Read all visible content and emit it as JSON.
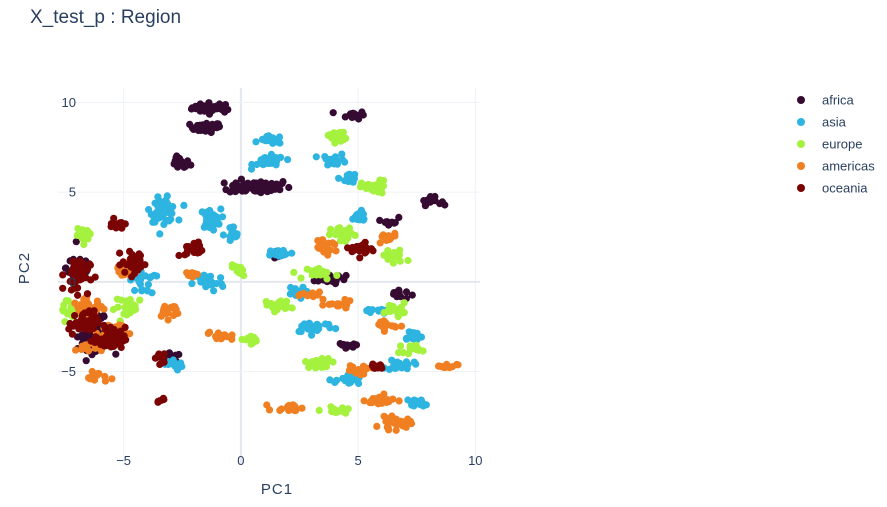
{
  "chart_data": {
    "type": "scatter",
    "title": "X_test_p : Region",
    "xlabel": "PC1",
    "ylabel": "PC2",
    "xlim": [
      -7.8,
      10.2
    ],
    "ylim": [
      -10.2,
      10.8
    ],
    "xticks": [
      -5,
      0,
      5,
      10
    ],
    "yticks": [
      -5,
      0,
      5,
      10
    ],
    "xtick_labels": [
      "−5",
      "0",
      "5",
      "10"
    ],
    "ytick_labels": [
      "−5",
      "0",
      "5",
      "10"
    ],
    "grid": true,
    "legend_position": "top-right",
    "series": [
      {
        "name": "africa",
        "color": "#360b32",
        "clusters": [
          {
            "x": -1.2,
            "y": 9.7,
            "sx": 0.8,
            "sy": 0.25,
            "n": 40
          },
          {
            "x": -1.5,
            "y": 8.6,
            "sx": 0.6,
            "sy": 0.25,
            "n": 30
          },
          {
            "x": -2.6,
            "y": 6.6,
            "sx": 0.4,
            "sy": 0.3,
            "n": 25
          },
          {
            "x": 0.8,
            "y": 5.3,
            "sx": 1.2,
            "sy": 0.35,
            "n": 70
          },
          {
            "x": 4.8,
            "y": 9.3,
            "sx": 0.45,
            "sy": 0.2,
            "n": 18
          },
          {
            "x": 8.1,
            "y": 4.5,
            "sx": 0.4,
            "sy": 0.2,
            "n": 18
          },
          {
            "x": 3.8,
            "y": 0.2,
            "sx": 0.6,
            "sy": 0.35,
            "n": 20
          },
          {
            "x": 6.7,
            "y": -0.7,
            "sx": 0.4,
            "sy": 0.25,
            "n": 14
          },
          {
            "x": 6.4,
            "y": 3.4,
            "sx": 0.3,
            "sy": 0.2,
            "n": 10
          },
          {
            "x": -6.2,
            "y": -2.9,
            "sx": 0.7,
            "sy": 0.8,
            "n": 90
          },
          {
            "x": -6.9,
            "y": 0.8,
            "sx": 0.5,
            "sy": 0.8,
            "n": 35
          },
          {
            "x": -3.0,
            "y": -4.3,
            "sx": 0.4,
            "sy": 0.3,
            "n": 16
          },
          {
            "x": 4.5,
            "y": -3.6,
            "sx": 0.5,
            "sy": 0.2,
            "n": 12
          },
          {
            "x": 1.6,
            "y": 1.5,
            "sx": 0.3,
            "sy": 0.2,
            "n": 8
          }
        ]
      },
      {
        "name": "asia",
        "color": "#2db4e0",
        "clusters": [
          {
            "x": 1.3,
            "y": 7.9,
            "sx": 0.45,
            "sy": 0.2,
            "n": 22
          },
          {
            "x": 1.2,
            "y": 6.7,
            "sx": 0.6,
            "sy": 0.3,
            "n": 30
          },
          {
            "x": 4.0,
            "y": 6.8,
            "sx": 0.5,
            "sy": 0.3,
            "n": 18
          },
          {
            "x": 4.6,
            "y": 5.8,
            "sx": 0.35,
            "sy": 0.25,
            "n": 12
          },
          {
            "x": -3.3,
            "y": 4.0,
            "sx": 0.5,
            "sy": 0.6,
            "n": 55
          },
          {
            "x": -1.3,
            "y": 3.5,
            "sx": 0.4,
            "sy": 0.5,
            "n": 35
          },
          {
            "x": -0.4,
            "y": 2.6,
            "sx": 0.3,
            "sy": 0.5,
            "n": 15
          },
          {
            "x": -1.4,
            "y": 0.0,
            "sx": 0.6,
            "sy": 0.5,
            "n": 30
          },
          {
            "x": 1.7,
            "y": 1.6,
            "sx": 0.5,
            "sy": 0.2,
            "n": 18
          },
          {
            "x": 3.1,
            "y": -2.5,
            "sx": 0.8,
            "sy": 0.3,
            "n": 30
          },
          {
            "x": 4.6,
            "y": -5.5,
            "sx": 0.5,
            "sy": 0.3,
            "n": 22
          },
          {
            "x": 6.8,
            "y": -4.6,
            "sx": 0.5,
            "sy": 0.3,
            "n": 20
          },
          {
            "x": 7.7,
            "y": -6.7,
            "sx": 0.4,
            "sy": 0.2,
            "n": 12
          },
          {
            "x": 7.3,
            "y": -3.0,
            "sx": 0.4,
            "sy": 0.3,
            "n": 16
          },
          {
            "x": 5.0,
            "y": 3.6,
            "sx": 0.4,
            "sy": 0.3,
            "n": 15
          },
          {
            "x": 2.3,
            "y": -0.6,
            "sx": 0.4,
            "sy": 0.3,
            "n": 14
          },
          {
            "x": -3.0,
            "y": -4.6,
            "sx": 0.5,
            "sy": 0.3,
            "n": 14
          },
          {
            "x": -4.2,
            "y": 0.0,
            "sx": 0.5,
            "sy": 0.6,
            "n": 20
          },
          {
            "x": 5.8,
            "y": -1.6,
            "sx": 0.4,
            "sy": 0.2,
            "n": 12
          }
        ]
      },
      {
        "name": "europe",
        "color": "#a4f23e",
        "clusters": [
          {
            "x": 4.1,
            "y": 8.1,
            "sx": 0.35,
            "sy": 0.3,
            "n": 18
          },
          {
            "x": 5.7,
            "y": 5.2,
            "sx": 0.5,
            "sy": 0.4,
            "n": 26
          },
          {
            "x": 4.4,
            "y": 2.6,
            "sx": 0.5,
            "sy": 0.4,
            "n": 25
          },
          {
            "x": 6.5,
            "y": 1.4,
            "sx": 0.5,
            "sy": 0.4,
            "n": 22
          },
          {
            "x": 6.6,
            "y": -1.5,
            "sx": 0.4,
            "sy": 0.3,
            "n": 18
          },
          {
            "x": 1.6,
            "y": -1.3,
            "sx": 0.5,
            "sy": 0.3,
            "n": 22
          },
          {
            "x": 3.4,
            "y": -4.5,
            "sx": 0.6,
            "sy": 0.25,
            "n": 22
          },
          {
            "x": 4.0,
            "y": -7.2,
            "sx": 0.4,
            "sy": 0.2,
            "n": 14
          },
          {
            "x": 0.4,
            "y": -3.2,
            "sx": 0.5,
            "sy": 0.2,
            "n": 18
          },
          {
            "x": -6.6,
            "y": 2.6,
            "sx": 0.4,
            "sy": 0.3,
            "n": 14
          },
          {
            "x": -7.4,
            "y": -1.5,
            "sx": 0.35,
            "sy": 0.5,
            "n": 16
          },
          {
            "x": -4.7,
            "y": -1.4,
            "sx": 0.6,
            "sy": 0.5,
            "n": 25
          },
          {
            "x": -0.1,
            "y": 0.6,
            "sx": 0.35,
            "sy": 0.3,
            "n": 12
          },
          {
            "x": 3.5,
            "y": 0.5,
            "sx": 0.6,
            "sy": 0.3,
            "n": 18
          },
          {
            "x": 7.2,
            "y": -3.7,
            "sx": 0.4,
            "sy": 0.25,
            "n": 14
          }
        ]
      },
      {
        "name": "americas",
        "color": "#f07f22",
        "clusters": [
          {
            "x": -6.5,
            "y": -1.5,
            "sx": 0.6,
            "sy": 0.5,
            "n": 40
          },
          {
            "x": -5.5,
            "y": -2.8,
            "sx": 0.5,
            "sy": 0.5,
            "n": 35
          },
          {
            "x": -6.5,
            "y": -3.6,
            "sx": 0.5,
            "sy": 0.3,
            "n": 20
          },
          {
            "x": -6.1,
            "y": -5.3,
            "sx": 0.4,
            "sy": 0.25,
            "n": 14
          },
          {
            "x": -5.0,
            "y": 0.6,
            "sx": 0.4,
            "sy": 0.4,
            "n": 18
          },
          {
            "x": -3.1,
            "y": -1.6,
            "sx": 0.45,
            "sy": 0.4,
            "n": 20
          },
          {
            "x": 3.6,
            "y": 1.9,
            "sx": 0.5,
            "sy": 0.3,
            "n": 20
          },
          {
            "x": 3.2,
            "y": -0.7,
            "sx": 0.5,
            "sy": 0.2,
            "n": 14
          },
          {
            "x": 4.2,
            "y": -1.3,
            "sx": 0.5,
            "sy": 0.2,
            "n": 14
          },
          {
            "x": 6.2,
            "y": 2.4,
            "sx": 0.4,
            "sy": 0.3,
            "n": 18
          },
          {
            "x": 6.2,
            "y": -2.4,
            "sx": 0.4,
            "sy": 0.3,
            "n": 16
          },
          {
            "x": 6.0,
            "y": -6.6,
            "sx": 0.6,
            "sy": 0.25,
            "n": 30
          },
          {
            "x": 6.6,
            "y": -7.9,
            "sx": 0.6,
            "sy": 0.3,
            "n": 30
          },
          {
            "x": 5.0,
            "y": -4.9,
            "sx": 0.5,
            "sy": 0.25,
            "n": 18
          },
          {
            "x": 2.1,
            "y": -7.0,
            "sx": 0.6,
            "sy": 0.2,
            "n": 18
          },
          {
            "x": -0.9,
            "y": -3.0,
            "sx": 0.5,
            "sy": 0.2,
            "n": 14
          },
          {
            "x": 8.8,
            "y": -4.7,
            "sx": 0.4,
            "sy": 0.12,
            "n": 12
          },
          {
            "x": -2.1,
            "y": 0.5,
            "sx": 0.3,
            "sy": 0.3,
            "n": 8
          }
        ]
      },
      {
        "name": "oceania",
        "color": "#7a0403",
        "clusters": [
          {
            "x": -7.0,
            "y": 0.4,
            "sx": 0.5,
            "sy": 0.9,
            "n": 45
          },
          {
            "x": -6.7,
            "y": -2.3,
            "sx": 0.6,
            "sy": 0.6,
            "n": 45
          },
          {
            "x": -5.6,
            "y": -3.2,
            "sx": 0.6,
            "sy": 0.6,
            "n": 40
          },
          {
            "x": -4.5,
            "y": 1.0,
            "sx": 0.5,
            "sy": 0.6,
            "n": 35
          },
          {
            "x": -5.3,
            "y": 3.3,
            "sx": 0.3,
            "sy": 0.3,
            "n": 12
          },
          {
            "x": -2.0,
            "y": 1.8,
            "sx": 0.35,
            "sy": 0.4,
            "n": 20
          },
          {
            "x": -3.4,
            "y": -4.2,
            "sx": 0.3,
            "sy": 0.3,
            "n": 10
          },
          {
            "x": -3.5,
            "y": -6.5,
            "sx": 0.2,
            "sy": 0.3,
            "n": 6
          },
          {
            "x": 5.2,
            "y": 1.8,
            "sx": 0.45,
            "sy": 0.35,
            "n": 22
          },
          {
            "x": 5.8,
            "y": -4.7,
            "sx": 0.3,
            "sy": 0.2,
            "n": 10
          }
        ]
      }
    ]
  }
}
